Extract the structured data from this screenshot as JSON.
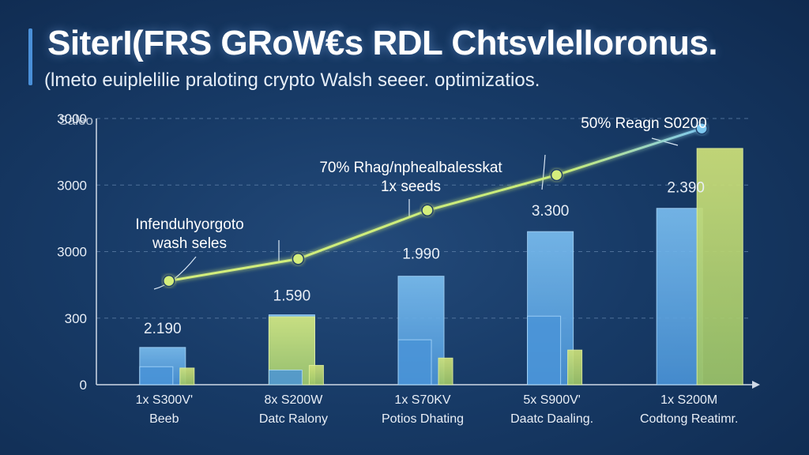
{
  "header": {
    "title": "SiterI(FRS GRoW€s RDL Chtsvlelloronus.",
    "subtitle": "(lmeto euiplelilie praloting crypto Walsh seeer. optimizatios."
  },
  "colors": {
    "background": "#173a66",
    "bar_blue": "#5aa6e6",
    "bar_green": "#b8d86a",
    "line": "#c8ec7a",
    "line_end": "#7ec8f0",
    "grid": "#5c7ea6"
  },
  "chart_data": {
    "type": "bar",
    "ylabel": "Saleo",
    "y_ticks": [
      "0",
      "300",
      "3000",
      "3000",
      "3000"
    ],
    "categories": [
      {
        "line1": "1x S300V'",
        "line2": "Beeb"
      },
      {
        "line1": "8x S200W",
        "line2": "Datc Ralony"
      },
      {
        "line1": "1x S70KV",
        "line2": "Potios Dhating"
      },
      {
        "line1": "5x S900V'",
        "line2": "Daatc Daaling."
      },
      {
        "line1": "1x S200M",
        "line2": "Codtong Reatimr."
      }
    ],
    "series": [
      {
        "type": "bar",
        "color": "#5aa6e6",
        "values": [
          560,
          1050,
          1630,
          2300,
          2650
        ]
      },
      {
        "type": "bar",
        "color": "#5aa6e6",
        "values": [
          270,
          220,
          675,
          1030,
          0
        ]
      },
      {
        "type": "bar",
        "color": "#b8d86a",
        "values": [
          250,
          290,
          400,
          520,
          3550
        ]
      },
      {
        "type": "bar",
        "color": "#b8d86a",
        "values": [
          0,
          1020,
          0,
          0,
          0
        ]
      },
      {
        "type": "line",
        "color": "#c8ec7a",
        "values": [
          1560,
          1890,
          2620,
          3150,
          3850
        ]
      }
    ],
    "data_labels": [
      "2.190",
      "1.590",
      "1.990",
      "3.300",
      "2.390"
    ],
    "annotations": [
      {
        "lines": [
          "Infenduhyorgoto",
          "wash seles"
        ],
        "point": 0
      },
      {
        "lines": [
          "70% Rhag/nphealbalesskat",
          "1x seeds"
        ],
        "point": 3
      },
      {
        "lines": [
          "50% Reagn S0200"
        ],
        "point": 4
      }
    ],
    "ylim": [
      0,
      4000
    ],
    "grid": true
  }
}
